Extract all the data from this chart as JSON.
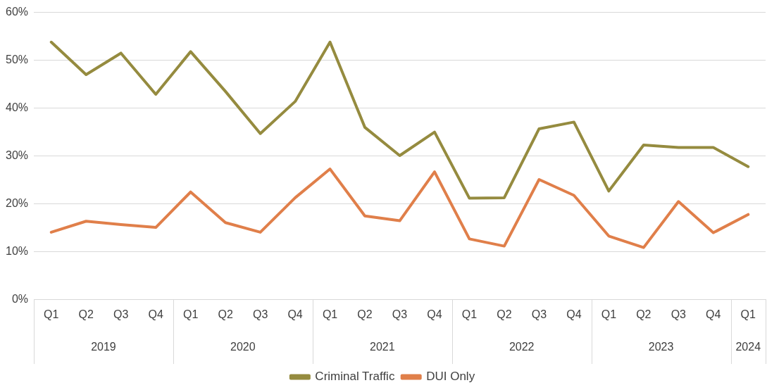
{
  "chart_data": {
    "type": "line",
    "categories": [
      "Q1",
      "Q2",
      "Q3",
      "Q4",
      "Q1",
      "Q2",
      "Q3",
      "Q4",
      "Q1",
      "Q2",
      "Q3",
      "Q4",
      "Q1",
      "Q2",
      "Q3",
      "Q4",
      "Q1",
      "Q2",
      "Q3",
      "Q4",
      "Q1"
    ],
    "annotations": [
      "2019",
      "2020",
      "2021",
      "2022",
      "2023",
      "2024"
    ],
    "series": [
      {
        "name": "Criminal Traffic",
        "color": "#958b3f",
        "values": [
          53.8,
          47.0,
          51.5,
          42.9,
          51.8,
          43.5,
          34.7,
          41.4,
          53.8,
          36.0,
          30.1,
          35.0,
          21.2,
          21.3,
          35.7,
          37.1,
          22.7,
          32.3,
          31.8,
          31.8,
          27.8
        ]
      },
      {
        "name": "DUI Only",
        "color": "#e07f4a",
        "values": [
          14.1,
          16.4,
          15.7,
          15.1,
          22.5,
          16.1,
          14.1,
          21.3,
          27.3,
          17.5,
          16.5,
          26.7,
          12.7,
          11.2,
          25.1,
          21.8,
          13.3,
          10.9,
          20.5,
          14.0,
          17.8
        ]
      }
    ],
    "ylim": [
      0,
      60
    ],
    "yticks": [
      {
        "value": 0,
        "label": "0%"
      },
      {
        "value": 10,
        "label": "10%"
      },
      {
        "value": 20,
        "label": "20%"
      },
      {
        "value": 30,
        "label": "30%"
      },
      {
        "value": 40,
        "label": "40%"
      },
      {
        "value": 50,
        "label": "50%"
      },
      {
        "value": 60,
        "label": "60%"
      }
    ],
    "grid": "y",
    "legend": "bottom",
    "marker": "none",
    "line_style": "solid"
  }
}
